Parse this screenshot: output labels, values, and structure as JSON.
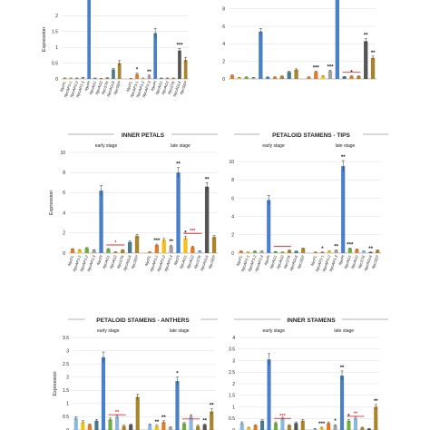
{
  "colors": {
    "blue": "#4a7fc9",
    "orange": "#e07b28",
    "yellow": "#f2c018",
    "green": "#6fae3e",
    "gray": "#a3a3a3",
    "dgray": "#555555",
    "brown": "#a8842c",
    "teal": "#4a7b8c",
    "lblue": "#8ab6e0",
    "red": "#d93030"
  },
  "chart_data": [
    {
      "type": "bar",
      "title": "",
      "ylabel": "Expression",
      "ylim": [
        0,
        2.5
      ],
      "yticks": [
        0,
        0.5,
        1,
        1.5,
        2
      ],
      "categories": [
        "NycFL",
        "NycAP3-1",
        "NycAP3-2",
        "NycAP3-3",
        "NycPI",
        "NycAG1",
        "NycAG2",
        "NycSTK",
        "NycAGL6",
        "NycSEP",
        "NycFL",
        "NycAP3-1",
        "NycAP3-2",
        "NycAP3-3",
        "NycPI",
        "NycAG1",
        "NycAG2",
        "NycSTK",
        "NycAGL6",
        "NycSEP"
      ],
      "values": [
        0.02,
        0.02,
        0.02,
        0.04,
        2.5,
        0.02,
        0.01,
        0.03,
        0.3,
        0.5,
        0.01,
        0.15,
        0.02,
        0.1,
        1.45,
        0.02,
        0.02,
        0.02,
        0.9,
        0.6
      ],
      "errors": [
        0.01,
        0.01,
        0.01,
        0.01,
        0.1,
        0.01,
        0.005,
        0.01,
        0.04,
        0.08,
        0.005,
        0.03,
        0.01,
        0.02,
        0.15,
        0.01,
        0.01,
        0.01,
        0.06,
        0.08
      ],
      "colors": [
        "orange",
        "yellow",
        "green",
        "gray",
        "blue",
        "blue",
        "orange",
        "brown",
        "teal",
        "brown",
        "orange",
        "orange",
        "yellow",
        "gray",
        "blue",
        "teal",
        "orange",
        "brown",
        "dgray",
        "brown"
      ],
      "annotations": [
        {
          "i": 11,
          "t": "*"
        },
        {
          "i": 13,
          "t": "**"
        },
        {
          "i": 18,
          "t": "***"
        }
      ]
    },
    {
      "type": "bar",
      "title": "",
      "ylabel": "",
      "ylim": [
        0,
        9
      ],
      "yticks": [
        0,
        2,
        4,
        6,
        8
      ],
      "categories": [
        "",
        "",
        "",
        "",
        "",
        "",
        "",
        "",
        "",
        "",
        "",
        "",
        "",
        "",
        "",
        "",
        "",
        "",
        "",
        ""
      ],
      "values": [
        0.4,
        0.15,
        0.2,
        0.15,
        5.4,
        0.2,
        0.2,
        0.3,
        0.8,
        1.05,
        0.2,
        0.8,
        0.3,
        0.9,
        9.0,
        0.25,
        0.3,
        0.3,
        4.3,
        2.4
      ],
      "errors": [
        0.05,
        0.03,
        0.03,
        0.03,
        0.35,
        0.03,
        0.03,
        0.04,
        0.08,
        0.1,
        0.03,
        0.08,
        0.05,
        0.1,
        0.4,
        0.03,
        0.05,
        0.05,
        0.3,
        0.2
      ],
      "colors": [
        "orange",
        "yellow",
        "green",
        "gray",
        "blue",
        "blue",
        "orange",
        "brown",
        "teal",
        "brown",
        "orange",
        "orange",
        "yellow",
        "gray",
        "blue",
        "teal",
        "orange",
        "brown",
        "dgray",
        "brown"
      ],
      "annotations": [
        {
          "i": 11,
          "t": "***"
        },
        {
          "i": 13,
          "t": "***"
        },
        {
          "i": 16,
          "t": "*"
        },
        {
          "i": 18,
          "t": "**"
        },
        {
          "i": 19,
          "t": "**"
        }
      ],
      "redlines": [
        {
          "from": 15,
          "to": 17
        }
      ]
    },
    {
      "type": "bar",
      "title": "INNER PETALS",
      "ylabel": "Expression",
      "ylim": [
        0,
        10
      ],
      "yticks": [
        0,
        2,
        4,
        6,
        8,
        10
      ],
      "stage_labels": [
        "early stage",
        "late stage"
      ],
      "categories": [
        "NycFL",
        "NycAP3-1",
        "NycAP3-2",
        "NycAP3-3",
        "NycPI",
        "NycAG1",
        "NycAG2",
        "NycSTK",
        "NycAGL6",
        "NycSEP",
        "NycFL",
        "NycAP3-1",
        "NycAP3-2",
        "NycAP3-3",
        "NycPI",
        "NycAG1",
        "NycAG2",
        "NycSTK",
        "NycAGL6",
        "NycSEP"
      ],
      "values": [
        0.4,
        0.3,
        0.5,
        0.3,
        6.2,
        0.4,
        0.1,
        0.3,
        1.1,
        1.7,
        0.1,
        0.8,
        1.3,
        0.7,
        8.0,
        1.5,
        0.6,
        0.2,
        6.6,
        1.6
      ],
      "errors": [
        0.05,
        0.05,
        0.05,
        0.05,
        0.5,
        0.05,
        0.03,
        0.05,
        0.1,
        0.15,
        0.03,
        0.1,
        0.15,
        0.1,
        0.5,
        0.15,
        0.1,
        0.05,
        0.4,
        0.15
      ],
      "colors": [
        "orange",
        "yellow",
        "green",
        "gray",
        "blue",
        "green",
        "orange",
        "brown",
        "teal",
        "brown",
        "orange",
        "orange",
        "yellow",
        "gray",
        "blue",
        "yellow",
        "orange",
        "lblue",
        "dgray",
        "brown"
      ],
      "annotations": [
        {
          "i": 11,
          "t": "***"
        },
        {
          "i": 13,
          "t": "**"
        },
        {
          "i": 14,
          "t": "**"
        },
        {
          "i": 15,
          "t": "*"
        },
        {
          "i": 18,
          "t": "**"
        }
      ],
      "redlines": [
        {
          "from": 5,
          "to": 7,
          "t": "*"
        },
        {
          "from": 15,
          "to": 17,
          "t": "***"
        }
      ]
    },
    {
      "type": "bar",
      "title": "PETALOID STAMENS - TIPS",
      "ylabel": "",
      "ylim": [
        0,
        11
      ],
      "yticks": [
        0,
        2,
        4,
        6,
        8,
        10
      ],
      "stage_labels": [
        "early stage",
        "late stage"
      ],
      "categories": [
        "NycFL",
        "NycAP3-1",
        "NycAP3-2",
        "NycAP3-3",
        "NycPI",
        "NycAG1",
        "NycAG2",
        "NycSTK",
        "NycAGL6",
        "NycSEP",
        "NycFL",
        "NycAP3-1",
        "NycAP3-2",
        "NycAP3-3",
        "NycPI",
        "NycAG1",
        "NycAG2",
        "NycSTK",
        "NycAGL6",
        "NycSEP"
      ],
      "values": [
        0.2,
        0.1,
        0.2,
        0.2,
        5.8,
        0.15,
        0.1,
        0.3,
        0.2,
        0.5,
        0.1,
        0.1,
        0.2,
        0.3,
        9.5,
        0.5,
        0.4,
        0.2,
        0.1,
        0.3
      ],
      "errors": [
        0.03,
        0.02,
        0.03,
        0.03,
        0.5,
        0.03,
        0.02,
        0.04,
        0.03,
        0.05,
        0.02,
        0.02,
        0.03,
        0.04,
        0.6,
        0.05,
        0.05,
        0.03,
        0.02,
        0.05
      ],
      "colors": [
        "orange",
        "yellow",
        "green",
        "gray",
        "blue",
        "green",
        "orange",
        "brown",
        "teal",
        "brown",
        "orange",
        "orange",
        "yellow",
        "gray",
        "blue",
        "green",
        "orange",
        "lblue",
        "dgray",
        "brown"
      ],
      "annotations": [
        {
          "i": 11,
          "t": "*"
        },
        {
          "i": 13,
          "t": "**"
        },
        {
          "i": 14,
          "t": "**"
        },
        {
          "i": 15,
          "t": "***"
        },
        {
          "i": 18,
          "t": "**"
        }
      ],
      "redlines": [
        {
          "from": 5,
          "to": 7
        }
      ]
    },
    {
      "type": "bar",
      "title": "PETALOID STAMENS - ANTHERS",
      "ylabel": "Expression",
      "ylim": [
        0,
        3.5
      ],
      "yticks": [
        0,
        0.5,
        1,
        1.5,
        2,
        2.5,
        3,
        3.5
      ],
      "stage_labels": [
        "early stage",
        "late stage"
      ],
      "categories": [
        "",
        "",
        "",
        "",
        "",
        "",
        "",
        "",
        "",
        "",
        "",
        "",
        "",
        "",
        "",
        "",
        "",
        "",
        "",
        ""
      ],
      "values": [
        0.45,
        0.3,
        0.2,
        0.35,
        2.75,
        0.4,
        0.5,
        0.15,
        0.2,
        1.25,
        0.2,
        0.15,
        0.3,
        0.1,
        1.85,
        0.25,
        0.5,
        0.15,
        0.2,
        0.7
      ],
      "errors": [
        0.05,
        0.05,
        0.03,
        0.05,
        0.2,
        0.05,
        0.05,
        0.03,
        0.03,
        0.1,
        0.03,
        0.03,
        0.05,
        0.02,
        0.15,
        0.03,
        0.05,
        0.03,
        0.03,
        0.1
      ],
      "colors": [
        "lblue",
        "yellow",
        "orange",
        "teal",
        "blue",
        "green",
        "lblue",
        "brown",
        "dgray",
        "brown",
        "lblue",
        "yellow",
        "orange",
        "gray",
        "blue",
        "green",
        "lblue",
        "brown",
        "dgray",
        "brown"
      ],
      "annotations": [
        {
          "i": 11,
          "t": "**"
        },
        {
          "i": 12,
          "t": "**"
        },
        {
          "i": 14,
          "t": "*"
        },
        {
          "i": 18,
          "t": "**"
        },
        {
          "i": 19,
          "t": "**"
        }
      ],
      "redlines": [
        {
          "from": 5,
          "to": 7,
          "t": "**"
        },
        {
          "from": 15,
          "to": 17,
          "t": "*"
        }
      ]
    },
    {
      "type": "bar",
      "title": "INNER STAMENS",
      "ylabel": "",
      "ylim": [
        0,
        4
      ],
      "yticks": [
        0,
        0.5,
        1,
        1.5,
        2,
        2.5,
        3,
        3.5,
        4
      ],
      "stage_labels": [
        "early stage",
        "late stage"
      ],
      "categories": [
        "",
        "",
        "",
        "",
        "",
        "",
        "",
        "",
        "",
        "",
        "",
        "",
        "",
        "",
        "",
        "",
        "",
        "",
        "",
        ""
      ],
      "values": [
        0.3,
        0.1,
        0.2,
        0.4,
        3.05,
        0.3,
        0.5,
        0.2,
        0.3,
        0.4,
        0.05,
        0.1,
        0.3,
        0.2,
        2.35,
        0.4,
        0.5,
        0.1,
        0.05,
        1.0
      ],
      "errors": [
        0.05,
        0.02,
        0.03,
        0.05,
        0.25,
        0.05,
        0.05,
        0.03,
        0.05,
        0.05,
        0.02,
        0.02,
        0.05,
        0.03,
        0.2,
        0.05,
        0.05,
        0.02,
        0.02,
        0.1
      ],
      "colors": [
        "lblue",
        "yellow",
        "orange",
        "teal",
        "blue",
        "green",
        "lblue",
        "brown",
        "dgray",
        "brown",
        "lblue",
        "yellow",
        "orange",
        "gray",
        "blue",
        "green",
        "lblue",
        "brown",
        "dgray",
        "brown"
      ],
      "annotations": [
        {
          "i": 11,
          "t": "***"
        },
        {
          "i": 13,
          "t": "*"
        },
        {
          "i": 14,
          "t": "**"
        },
        {
          "i": 15,
          "t": "*"
        },
        {
          "i": 19,
          "t": "**"
        }
      ],
      "redlines": [
        {
          "from": 5,
          "to": 7,
          "t": "***"
        },
        {
          "from": 15,
          "to": 17,
          "t": "**"
        }
      ]
    }
  ]
}
